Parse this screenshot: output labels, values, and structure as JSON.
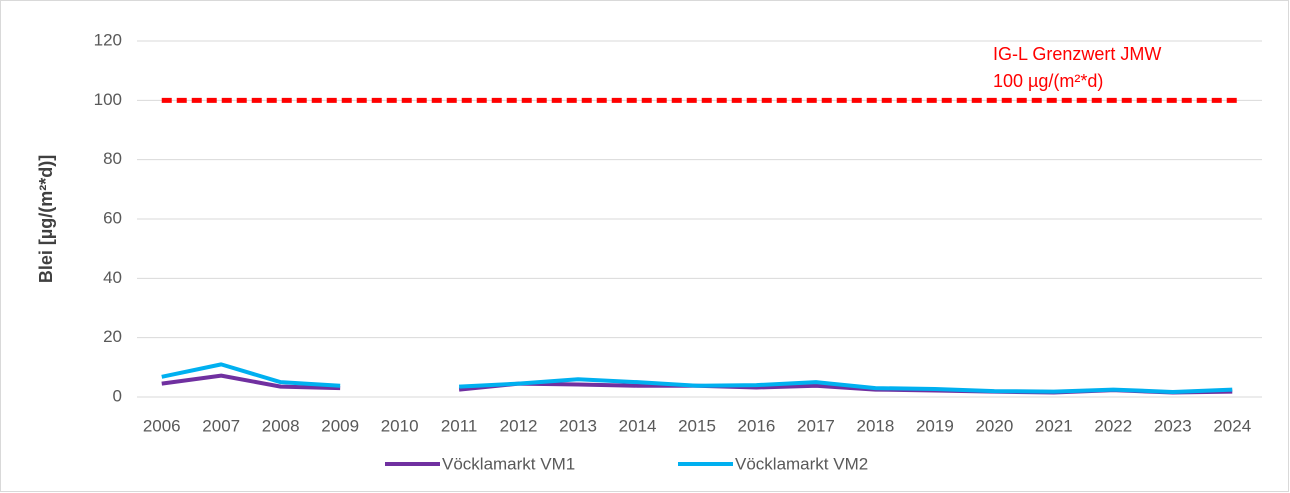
{
  "chart_data": {
    "type": "line",
    "y_label": "Blei [µg/(m²*d)]",
    "categories": [
      "2006",
      "2007",
      "2008",
      "2009",
      "2010",
      "2011",
      "2012",
      "2013",
      "2014",
      "2015",
      "2016",
      "2017",
      "2018",
      "2019",
      "2020",
      "2021",
      "2022",
      "2023",
      "2024"
    ],
    "series": [
      {
        "name": "Vöcklamarkt VM1",
        "color": "#7030a0",
        "values": [
          4.5,
          7.2,
          3.5,
          3.0,
          null,
          2.5,
          4.5,
          4.2,
          3.8,
          3.8,
          3.2,
          3.8,
          2.5,
          2.2,
          1.8,
          1.5,
          2.3,
          1.5,
          1.8
        ]
      },
      {
        "name": "Vöcklamarkt VM2",
        "color": "#00b0f0",
        "values": [
          6.8,
          11,
          5.0,
          3.8,
          null,
          3.5,
          4.5,
          6.0,
          5.0,
          3.8,
          4.0,
          5.0,
          3.0,
          2.7,
          2.0,
          1.8,
          2.5,
          1.7,
          2.5
        ]
      }
    ],
    "threshold": {
      "value": 100,
      "color": "#ff0000",
      "label": [
        "IG-L Grenzwert JMW",
        "100 µg/(m²*d)"
      ]
    },
    "ylim": [
      0,
      120
    ],
    "yticks": [
      0,
      20,
      40,
      60,
      80,
      100,
      120
    ],
    "grid": true,
    "legend": "bottom"
  }
}
